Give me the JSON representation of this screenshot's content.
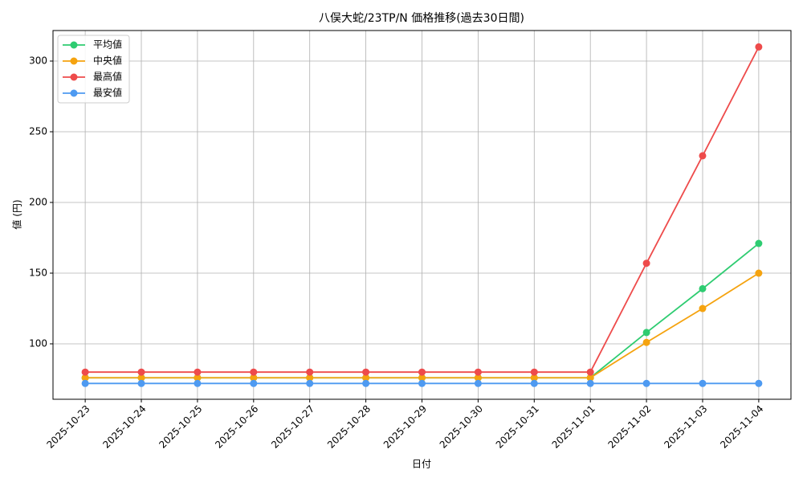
{
  "chart_data": {
    "type": "line",
    "title": "八俣大蛇/23TP/N 価格推移(過去30日間)",
    "x_label": "日付",
    "y_label": "値 (円)",
    "categories": [
      "2025-10-23",
      "2025-10-24",
      "2025-10-25",
      "2025-10-26",
      "2025-10-27",
      "2025-10-28",
      "2025-10-29",
      "2025-10-30",
      "2025-10-31",
      "2025-11-01",
      "2025-11-02",
      "2025-11-03",
      "2025-11-04"
    ],
    "series": [
      {
        "name": "平均値",
        "color": "#2ecc71",
        "values": [
          76,
          76,
          76,
          76,
          76,
          76,
          76,
          76,
          76,
          76,
          108,
          139,
          171
        ]
      },
      {
        "name": "中央値",
        "color": "#f5a30f",
        "values": [
          76,
          76,
          76,
          76,
          76,
          76,
          76,
          76,
          76,
          76,
          101,
          125,
          150
        ]
      },
      {
        "name": "最高値",
        "color": "#ee4b4b",
        "values": [
          80,
          80,
          80,
          80,
          80,
          80,
          80,
          80,
          80,
          80,
          157,
          233,
          310
        ]
      },
      {
        "name": "最安値",
        "color": "#4e9af1",
        "values": [
          72,
          72,
          72,
          72,
          72,
          72,
          72,
          72,
          72,
          72,
          72,
          72,
          72
        ]
      }
    ],
    "ylim": [
      60.8,
      321.6
    ],
    "yticks": [
      100,
      150,
      200,
      250,
      300
    ],
    "grid": true,
    "legend": "upper-left"
  }
}
